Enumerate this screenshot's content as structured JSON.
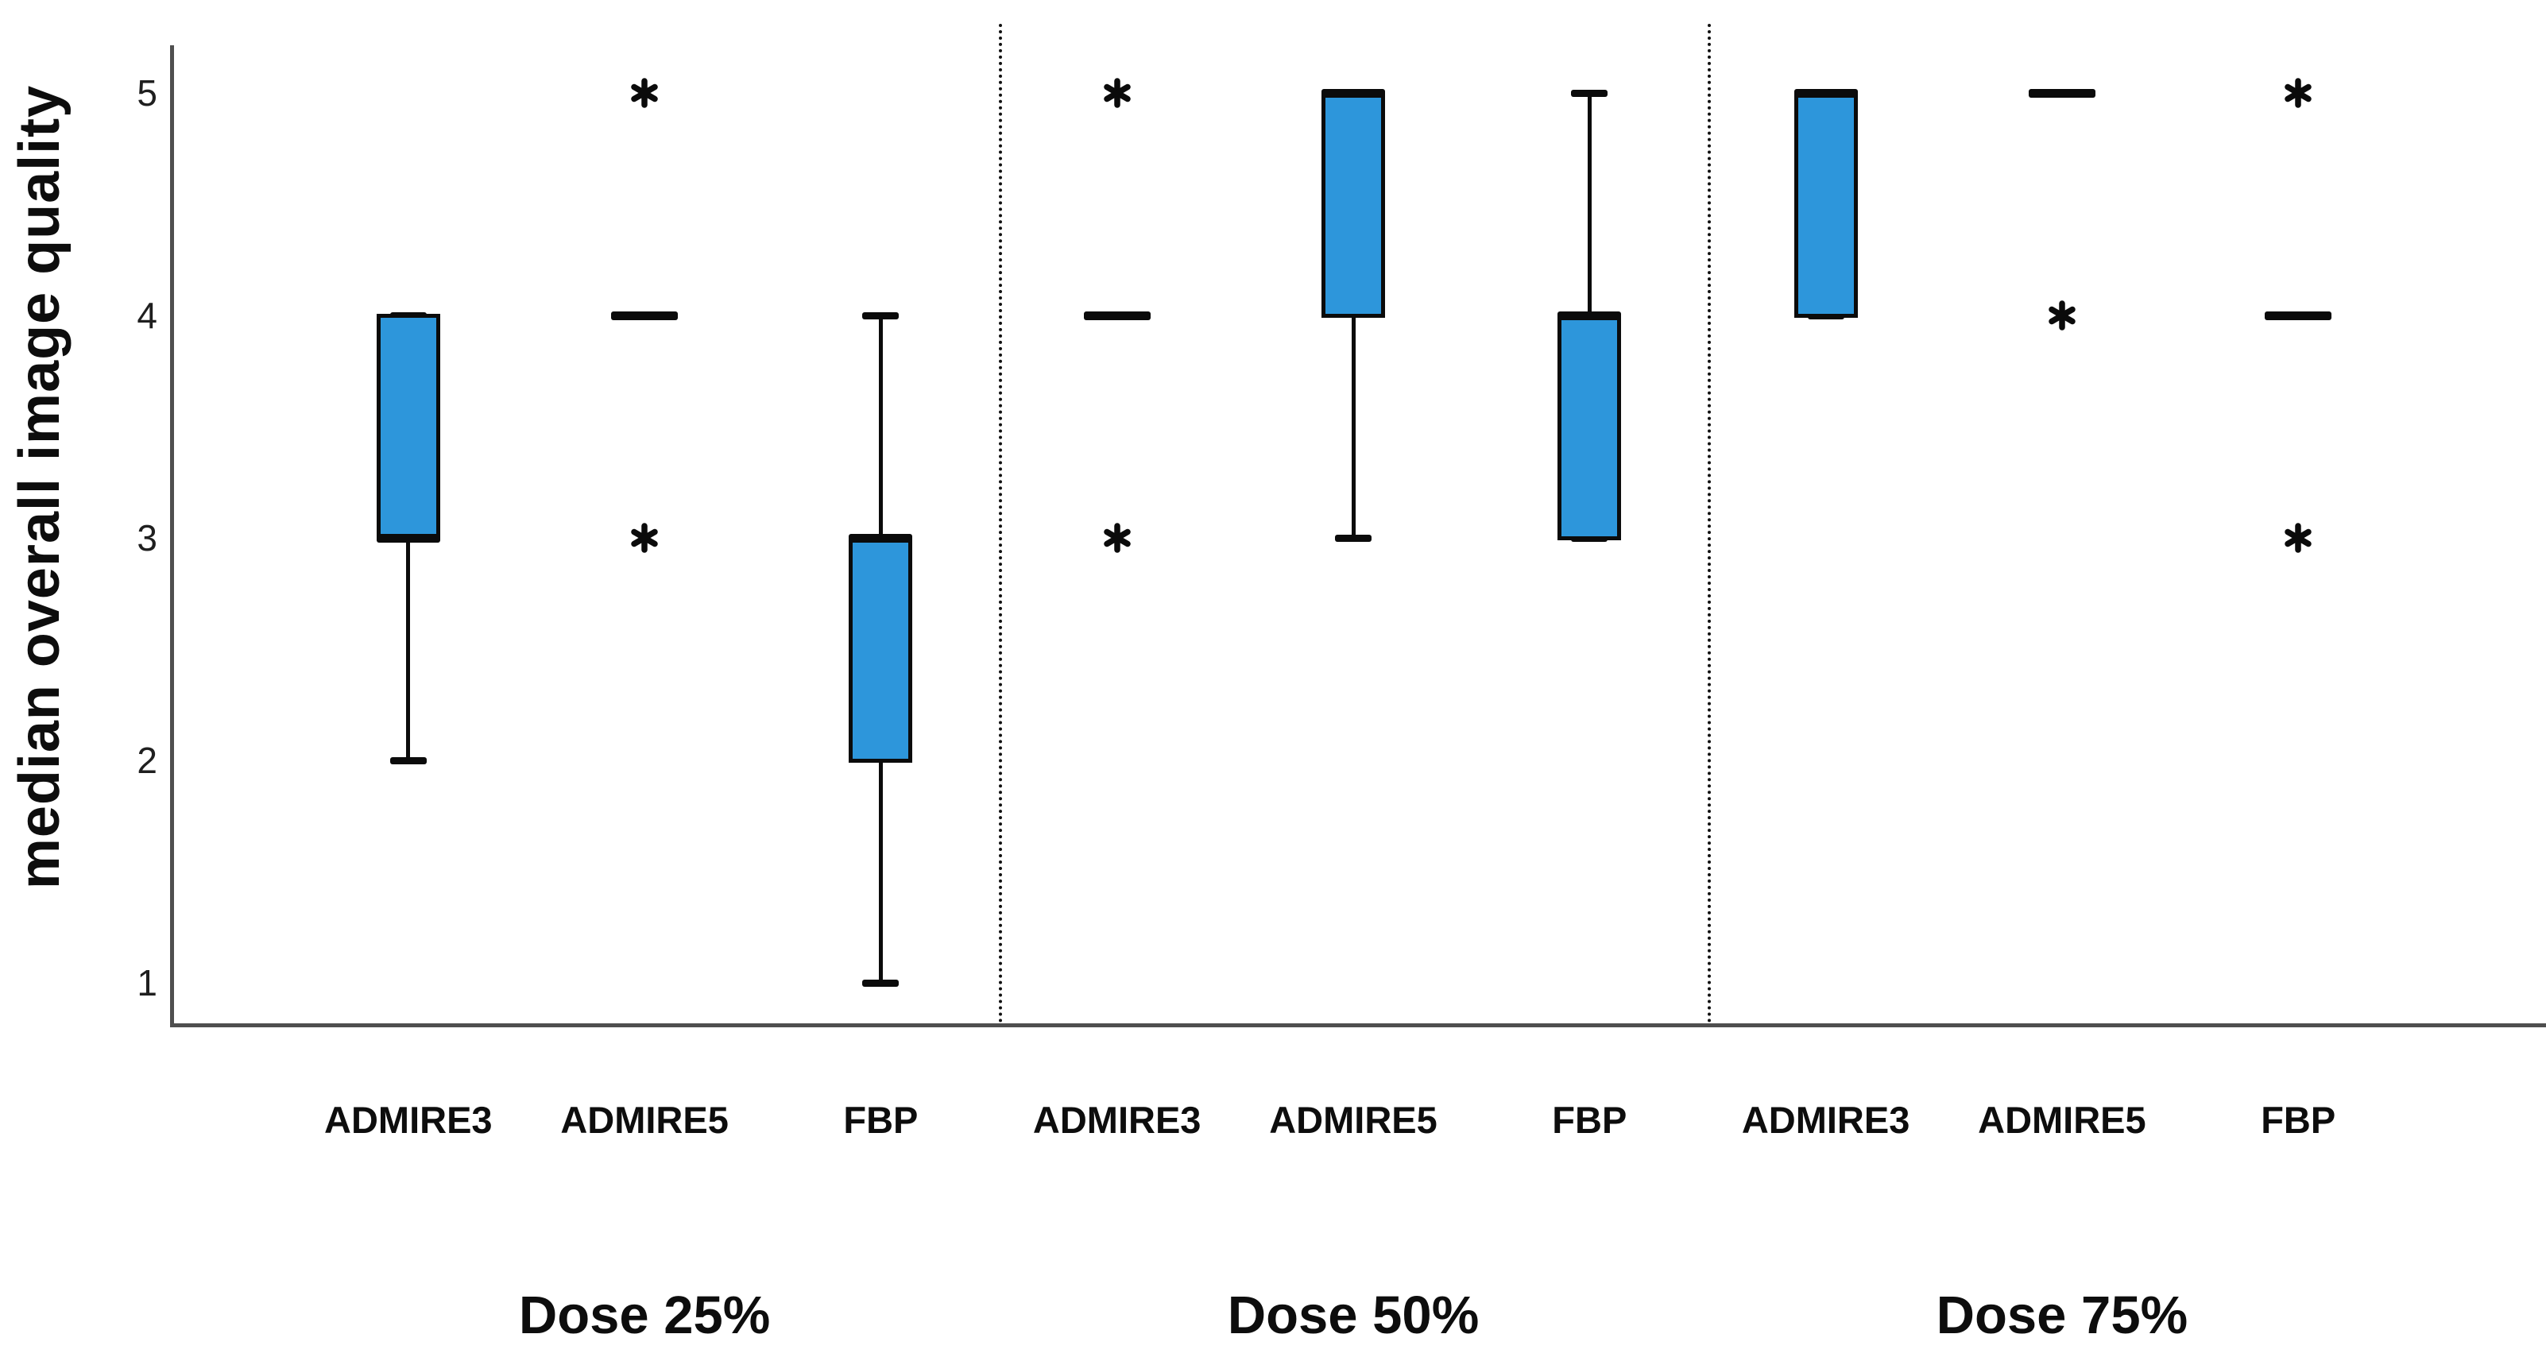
{
  "chart_data": {
    "type": "boxplot",
    "title": "",
    "ylabel": "median overall image quality",
    "xlabel": "",
    "yticks": [
      1,
      2,
      3,
      4,
      5
    ],
    "ylim": [
      1,
      5
    ],
    "grid": false,
    "legend": "none",
    "box_fill_color": "#2D96DB",
    "box_border_color": "#0b0b0b",
    "axis_color": "#4f4f4f",
    "outlier_marker": "*",
    "panels": [
      {
        "label": "Dose 25%",
        "groups": [
          {
            "method": "ADMIRE3",
            "q1": 3,
            "q3": 4,
            "median": 3,
            "whisker_low": 2,
            "whisker_high": 4,
            "outliers": []
          },
          {
            "method": "ADMIRE5",
            "q1": 4,
            "q3": 4,
            "median": 4,
            "whisker_low": 4,
            "whisker_high": 4,
            "outliers": [
              5,
              3
            ]
          },
          {
            "method": "FBP",
            "q1": 2,
            "q3": 3,
            "median": 3,
            "whisker_low": 1,
            "whisker_high": 4,
            "outliers": []
          }
        ]
      },
      {
        "label": "Dose 50%",
        "groups": [
          {
            "method": "ADMIRE3",
            "q1": 4,
            "q3": 4,
            "median": 4,
            "whisker_low": 4,
            "whisker_high": 4,
            "outliers": [
              5,
              3
            ]
          },
          {
            "method": "ADMIRE5",
            "q1": 4,
            "q3": 5,
            "median": 5,
            "whisker_low": 3,
            "whisker_high": 5,
            "outliers": []
          },
          {
            "method": "FBP",
            "q1": 3,
            "q3": 4,
            "median": 4,
            "whisker_low": 3,
            "whisker_high": 5,
            "outliers": []
          }
        ]
      },
      {
        "label": "Dose 75%",
        "groups": [
          {
            "method": "ADMIRE3",
            "q1": 4,
            "q3": 5,
            "median": 5,
            "whisker_low": 4,
            "whisker_high": 5,
            "outliers": []
          },
          {
            "method": "ADMIRE5",
            "q1": 5,
            "q3": 5,
            "median": 5,
            "whisker_low": 5,
            "whisker_high": 5,
            "outliers": [
              4
            ]
          },
          {
            "method": "FBP",
            "q1": 4,
            "q3": 4,
            "median": 4,
            "whisker_low": 4,
            "whisker_high": 4,
            "outliers": [
              5,
              3
            ]
          }
        ]
      }
    ]
  }
}
